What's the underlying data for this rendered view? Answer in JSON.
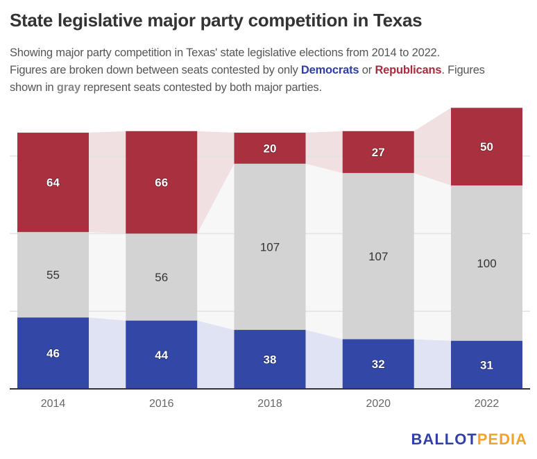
{
  "header": {
    "title": "State legislative major party competition in Texas",
    "subtitle_line1": "Showing major party competition in Texas' state legislative elections from 2014 to 2022.",
    "subtitle_pre": "Figures are broken down between seats contested by only ",
    "subtitle_dem": "Democrats",
    "subtitle_or": " or ",
    "subtitle_rep": "Republicans",
    "subtitle_post": ". Figures",
    "subtitle_line3_pre": "shown in ",
    "subtitle_gray": "gray",
    "subtitle_line3_post": " represent seats contested by both major parties."
  },
  "colors": {
    "democrats": "#3247a6",
    "both": "#d3d3d3",
    "republicans": "#a8303f",
    "dem_band": "#e0e3f3",
    "both_band": "#f7f7f7",
    "rep_band": "#f1e0e2"
  },
  "chart_data": {
    "type": "bar",
    "stacked": true,
    "title": "State legislative major party competition in Texas",
    "categories": [
      "2014",
      "2016",
      "2018",
      "2020",
      "2022"
    ],
    "series": [
      {
        "name": "Democrats only",
        "color": "#3247a6",
        "values": [
          46,
          44,
          38,
          32,
          31
        ]
      },
      {
        "name": "Both major parties",
        "color": "#d3d3d3",
        "values": [
          55,
          56,
          107,
          107,
          100
        ]
      },
      {
        "name": "Republicans only",
        "color": "#a8303f",
        "values": [
          64,
          66,
          20,
          27,
          50
        ]
      }
    ],
    "xlabel": "",
    "ylabel": "",
    "ylim": [
      0,
      181
    ],
    "gridlines": [
      50,
      100,
      150
    ],
    "grid": true,
    "legend": "none"
  },
  "footer": {
    "logo_part1": "BALLOT",
    "logo_part2": "PEDIA"
  }
}
